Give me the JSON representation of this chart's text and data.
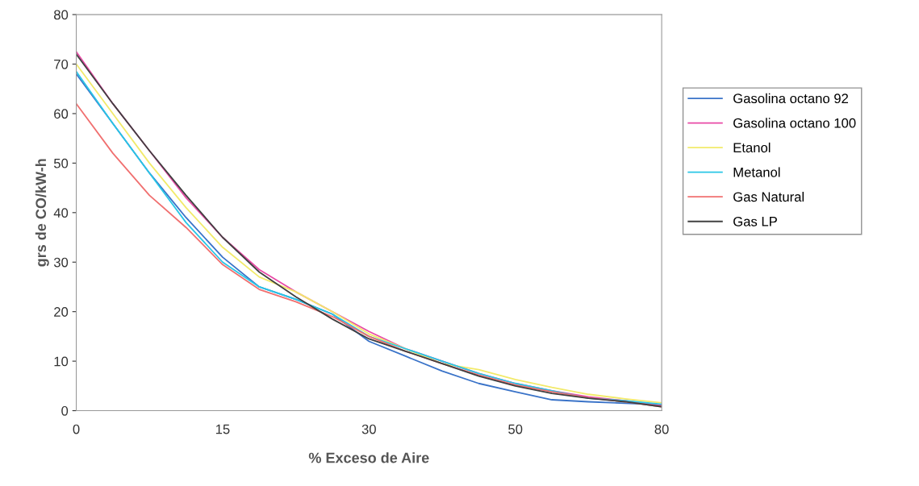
{
  "chart_data": {
    "type": "line",
    "xlabel": "% Exceso de Aire",
    "ylabel": "grs de CO/kW-h",
    "categories": [
      "0",
      null,
      null,
      null,
      "15",
      null,
      null,
      null,
      "30",
      null,
      null,
      null,
      "50",
      null,
      null,
      null,
      "80"
    ],
    "series": [
      {
        "name": "Gasolina octano 92",
        "color": "#3a73c8",
        "values": [
          68,
          58,
          48,
          39,
          31,
          25,
          22.5,
          19.5,
          14,
          11,
          8,
          5.5,
          3.8,
          2.2,
          1.8,
          1.5,
          1.2
        ]
      },
      {
        "name": "Gasolina octano 100",
        "color": "#e84aa6",
        "values": [
          72.5,
          62,
          52.5,
          43,
          35,
          28.5,
          24,
          20,
          16,
          12.5,
          10,
          7.5,
          5.5,
          4,
          2.8,
          2,
          1
        ]
      },
      {
        "name": "Etanol",
        "color": "#f2ea6a",
        "values": [
          70,
          60,
          50,
          41,
          33,
          27,
          24,
          20,
          15.5,
          12.5,
          9.5,
          8.3,
          6.3,
          4.7,
          3.3,
          2.4,
          1.6
        ]
      },
      {
        "name": "Metanol",
        "color": "#29c6e6",
        "values": [
          68.5,
          58,
          48,
          38,
          30,
          25,
          22.5,
          19.5,
          15,
          12.5,
          10,
          7.5,
          5.5,
          4,
          2.5,
          2,
          1.3
        ]
      },
      {
        "name": "Gas Natural",
        "color": "#f07070",
        "values": [
          62,
          52,
          43.5,
          37,
          29.5,
          24.5,
          22,
          19,
          15,
          12,
          9.5,
          7.2,
          5.2,
          3.8,
          2.6,
          1.8,
          0.8
        ]
      },
      {
        "name": "Gas LP",
        "color": "#404040",
        "values": [
          72,
          62,
          52.5,
          43.5,
          35,
          28,
          23,
          18.5,
          14.5,
          12,
          9.5,
          7,
          5,
          3.5,
          2.5,
          1.8,
          0.8
        ]
      }
    ],
    "ylim": [
      0,
      80
    ],
    "yticks": [
      0,
      10,
      20,
      30,
      40,
      50,
      60,
      70,
      80
    ],
    "grid": false,
    "legend": "right",
    "marker": "none",
    "line_style": "solid"
  }
}
